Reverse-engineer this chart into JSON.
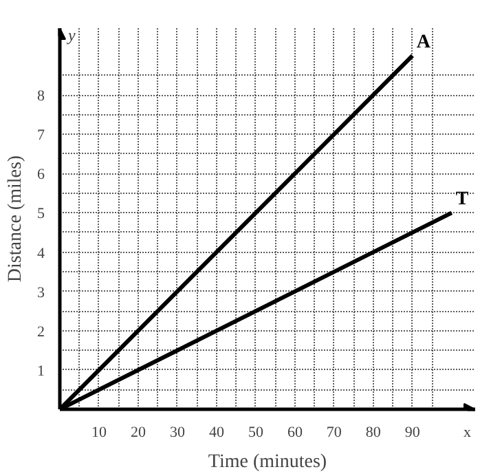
{
  "chart_data": {
    "type": "line",
    "xlabel": "Time (minutes)",
    "ylabel": "Distance (miles)",
    "x": [
      0,
      90
    ],
    "series": [
      {
        "name": "A",
        "color": "#000000",
        "values": [
          0,
          9
        ]
      },
      {
        "name": "T",
        "color": "#000000",
        "values": [
          0,
          5
        ],
        "x": [
          0,
          100
        ]
      }
    ],
    "xlim": [
      0,
      106
    ],
    "ylim": [
      0,
      9.7
    ],
    "xticks": [
      {
        "value": 5,
        "label": null
      },
      10,
      {
        "value": 15,
        "label": null
      },
      20,
      {
        "value": 25,
        "label": null
      },
      30,
      {
        "value": 35,
        "label": null
      },
      40,
      {
        "value": 45,
        "label": null
      },
      50,
      {
        "value": 55,
        "label": null
      },
      60,
      {
        "value": 65,
        "label": null
      },
      70,
      {
        "value": 75,
        "label": null
      },
      80,
      {
        "value": 85,
        "label": null
      },
      90,
      {
        "value": 95,
        "label": null
      }
    ],
    "yticks": [
      {
        "value": 0.5,
        "label": null
      },
      1,
      {
        "value": 1.5,
        "label": null
      },
      2,
      {
        "value": 2.5,
        "label": null
      },
      3,
      {
        "value": 3.5,
        "label": null
      },
      4,
      {
        "value": 4.5,
        "label": null
      },
      5,
      {
        "value": 5.5,
        "label": null
      },
      6,
      {
        "value": 6.5,
        "label": null
      },
      7,
      {
        "value": 7.5,
        "label": null
      },
      8,
      {
        "value": 8.5,
        "label": null
      }
    ],
    "grid": true,
    "line_style": "solid",
    "marker": "none",
    "annotations": [
      "x",
      "y"
    ]
  }
}
